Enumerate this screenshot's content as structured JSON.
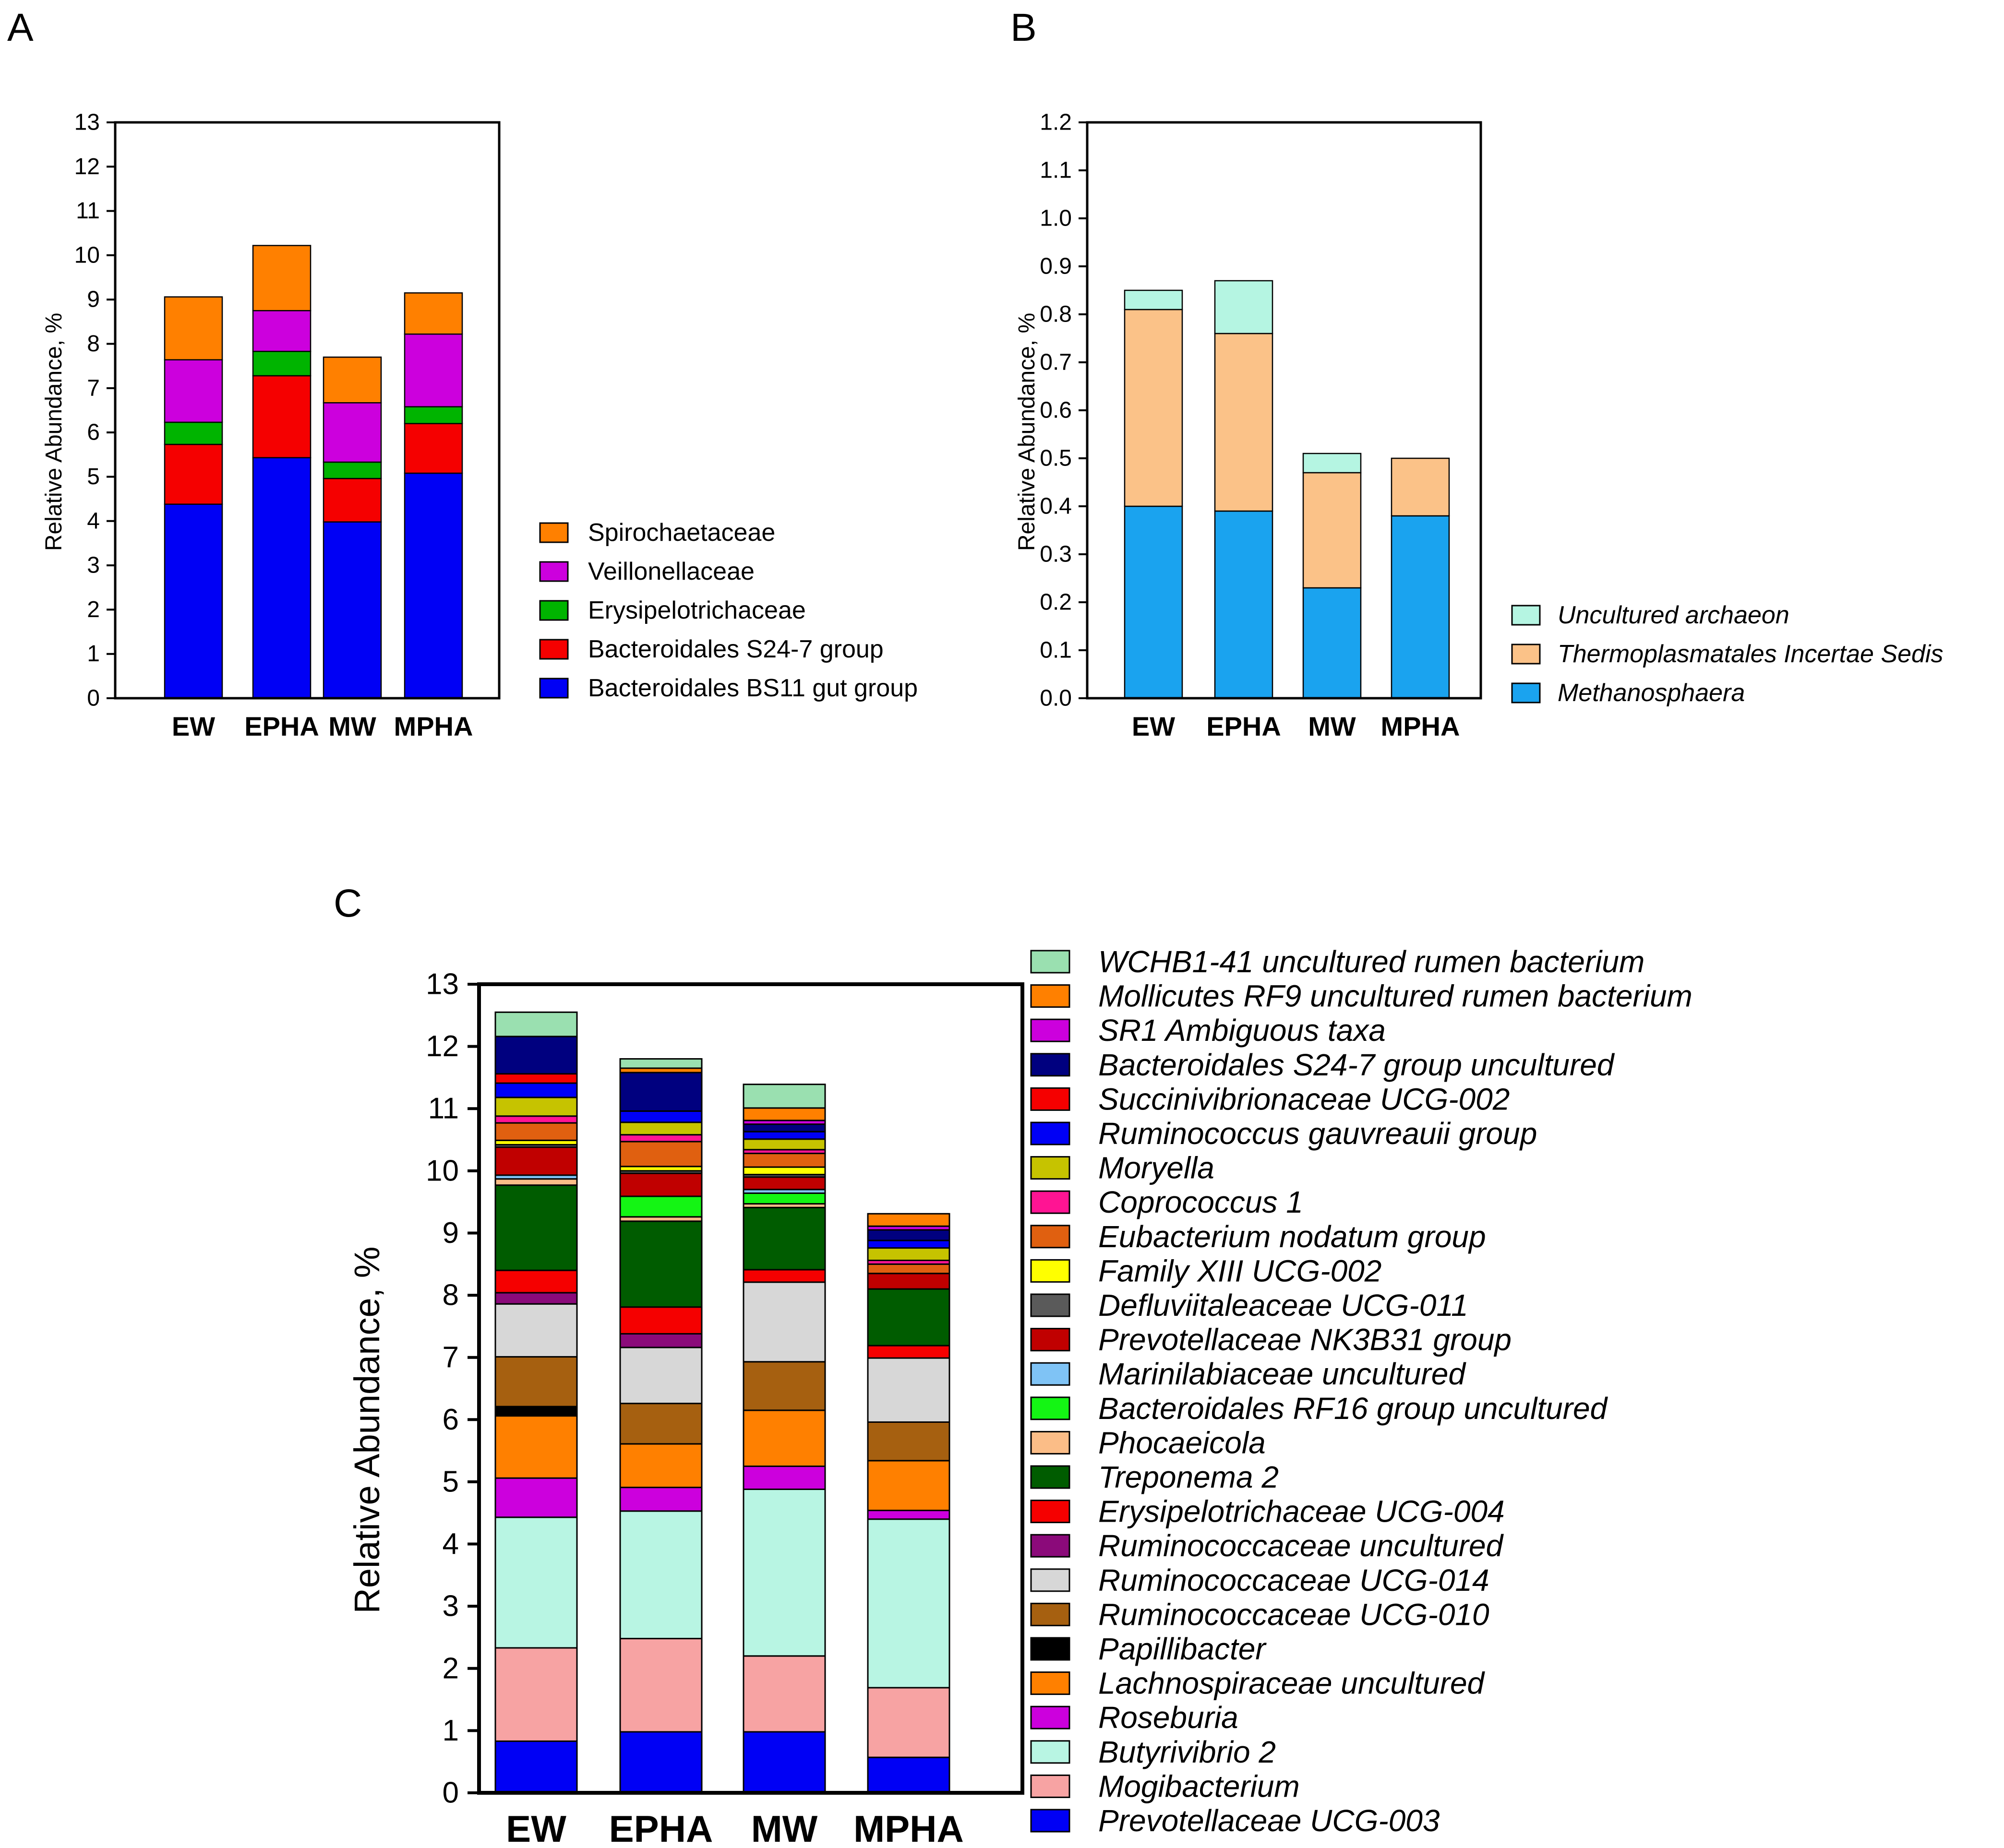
{
  "panels": [
    {
      "letter": "A",
      "title": "",
      "ylabel": "Relative Abundance, %",
      "chart_data": {
        "type": "bar",
        "stacked": true,
        "categories": [
          "EW",
          "EPHA",
          "MW",
          "MPHA"
        ],
        "ylim": [
          0,
          13
        ],
        "yticks": [
          "0",
          "1",
          "2",
          "3",
          "4",
          "5",
          "6",
          "7",
          "8",
          "9",
          "10",
          "11",
          "12",
          "13"
        ],
        "ylabel": "Relative Abundance, %",
        "legend_position": "right",
        "series": [
          {
            "name": "Bacteroidales BS11 gut group",
            "color": "#0000f5",
            "values": [
              4.38,
              5.43,
              3.98,
              5.08
            ]
          },
          {
            "name": "Bacteroidales S24-7 group",
            "color": "#f50000",
            "values": [
              1.35,
              1.85,
              0.98,
              1.12
            ]
          },
          {
            "name": "Erysipelotrichaceae",
            "color": "#00b400",
            "values": [
              0.5,
              0.55,
              0.37,
              0.38
            ]
          },
          {
            "name": "Veillonellaceae",
            "color": "#cc00dd",
            "values": [
              1.41,
              0.92,
              1.34,
              1.64
            ]
          },
          {
            "name": "Spirochaetaceae",
            "color": "#ff8000",
            "values": [
              1.42,
              1.47,
              1.03,
              0.93
            ]
          }
        ]
      }
    },
    {
      "letter": "B",
      "title": "",
      "ylabel": "Relative Abundance, %",
      "chart_data": {
        "type": "bar",
        "stacked": true,
        "categories": [
          "EW",
          "EPHA",
          "MW",
          "MPHA"
        ],
        "ylim": [
          0,
          1.2
        ],
        "yticks": [
          "0.0",
          "0.1",
          "0.2",
          "0.3",
          "0.4",
          "0.5",
          "0.6",
          "0.7",
          "0.8",
          "0.9",
          "1.0",
          "1.1",
          "1.2"
        ],
        "ylabel": "Relative Abundance, %",
        "legend_position": "right",
        "series": [
          {
            "name": "Methanosphaera",
            "color": "#1aa3ef",
            "values": [
              0.4,
              0.39,
              0.23,
              0.38
            ]
          },
          {
            "name": "Thermoplasmatales Incertae Sedis",
            "color": "#fbc288",
            "values": [
              0.41,
              0.37,
              0.24,
              0.12
            ]
          },
          {
            "name": "Uncultured archaeon",
            "color": "#b5f5e2",
            "values": [
              0.04,
              0.11,
              0.04,
              0.0
            ]
          }
        ]
      }
    },
    {
      "letter": "C",
      "title": "",
      "ylabel": "Relative Abundance, %",
      "chart_data": {
        "type": "bar",
        "stacked": true,
        "categories": [
          "EW",
          "EPHA",
          "MW",
          "MPHA"
        ],
        "ylim": [
          0,
          13
        ],
        "yticks": [
          "0",
          "1",
          "2",
          "3",
          "4",
          "5",
          "6",
          "7",
          "8",
          "9",
          "10",
          "11",
          "12",
          "13"
        ],
        "ylabel": "Relative Abundance, %",
        "legend_position": "right",
        "series": [
          {
            "name": "Prevotellaceae UCG-003",
            "color": "#0000f5",
            "values": [
              0.83,
              0.98,
              0.98,
              0.57
            ]
          },
          {
            "name": "Mogibacterium",
            "color": "#f7a3a3",
            "values": [
              1.5,
              1.5,
              1.22,
              1.12
            ]
          },
          {
            "name": "Butyrivibrio 2",
            "color": "#b8f5e3",
            "values": [
              2.1,
              2.05,
              2.68,
              2.71
            ]
          },
          {
            "name": "Roseburia",
            "color": "#cc00dd",
            "values": [
              0.63,
              0.38,
              0.37,
              0.14
            ]
          },
          {
            "name": "Lachnospiraceae uncultured",
            "color": "#ff8000",
            "values": [
              1.0,
              0.7,
              0.9,
              0.8
            ]
          },
          {
            "name": "Papillibacter",
            "color": "#000000",
            "values": [
              0.15,
              0.0,
              0.0,
              0.0
            ]
          },
          {
            "name": "Ruminococcaceae UCG-010",
            "color": "#a66010",
            "values": [
              0.8,
              0.65,
              0.78,
              0.62
            ]
          },
          {
            "name": "Ruminococcaceae UCG-014",
            "color": "#d7d7d7",
            "values": [
              0.85,
              0.9,
              1.28,
              1.03
            ]
          },
          {
            "name": "Ruminococcaceae uncultured",
            "color": "#8b0a7a",
            "values": [
              0.18,
              0.22,
              0.0,
              0.0
            ]
          },
          {
            "name": "Erysipelotrichaceae UCG-004",
            "color": "#f50000",
            "values": [
              0.36,
              0.43,
              0.2,
              0.2
            ]
          },
          {
            "name": "Treponema 2",
            "color": "#005c00",
            "values": [
              1.37,
              1.38,
              1.0,
              0.91
            ]
          },
          {
            "name": "Phocaeicola",
            "color": "#fbbd87",
            "values": [
              0.1,
              0.07,
              0.06,
              0.0
            ]
          },
          {
            "name": "Bacteroidales RF16 group uncultured",
            "color": "#14f514",
            "values": [
              0.0,
              0.33,
              0.17,
              0.0
            ]
          },
          {
            "name": "Marinilabiaceae uncultured",
            "color": "#7fc3f5",
            "values": [
              0.06,
              0.0,
              0.06,
              0.0
            ]
          },
          {
            "name": "Prevotellaceae NK3B31 group",
            "color": "#c00000",
            "values": [
              0.45,
              0.37,
              0.2,
              0.25
            ]
          },
          {
            "name": "Defluviitaleaceae UCG-011",
            "color": "#5a5a5a",
            "values": [
              0.04,
              0.04,
              0.04,
              0.0
            ]
          },
          {
            "name": "Family XIII UCG-002",
            "color": "#ffff00",
            "values": [
              0.07,
              0.07,
              0.12,
              0.0
            ]
          },
          {
            "name": "Eubacterium nodatum group",
            "color": "#e06010",
            "values": [
              0.28,
              0.4,
              0.22,
              0.15
            ]
          },
          {
            "name": "Coprococcus 1",
            "color": "#ff1493",
            "values": [
              0.11,
              0.11,
              0.06,
              0.06
            ]
          },
          {
            "name": "Moryella",
            "color": "#c6c300",
            "values": [
              0.3,
              0.2,
              0.17,
              0.2
            ]
          },
          {
            "name": "Ruminococcus gauvreauii group",
            "color": "#0000f5",
            "values": [
              0.23,
              0.18,
              0.12,
              0.12
            ]
          },
          {
            "name": "Succinivibrionaceae UCG-002",
            "color": "#f50000",
            "values": [
              0.15,
              0.0,
              0.0,
              0.0
            ]
          },
          {
            "name": "Bacteroidales S24-7 group uncultured",
            "color": "#00007f",
            "values": [
              0.6,
              0.62,
              0.12,
              0.17
            ]
          },
          {
            "name": "SR1 Ambiguous taxa",
            "color": "#cc00dd",
            "values": [
              0.0,
              0.0,
              0.06,
              0.06
            ]
          },
          {
            "name": "Mollicutes RF9 uncultured rumen bacterium",
            "color": "#ff8000",
            "values": [
              0.0,
              0.07,
              0.2,
              0.2
            ]
          },
          {
            "name": "WCHB1-41 uncultured rumen bacterium",
            "color": "#9ae0b0",
            "values": [
              0.39,
              0.15,
              0.38,
              0.0
            ]
          }
        ]
      }
    }
  ]
}
